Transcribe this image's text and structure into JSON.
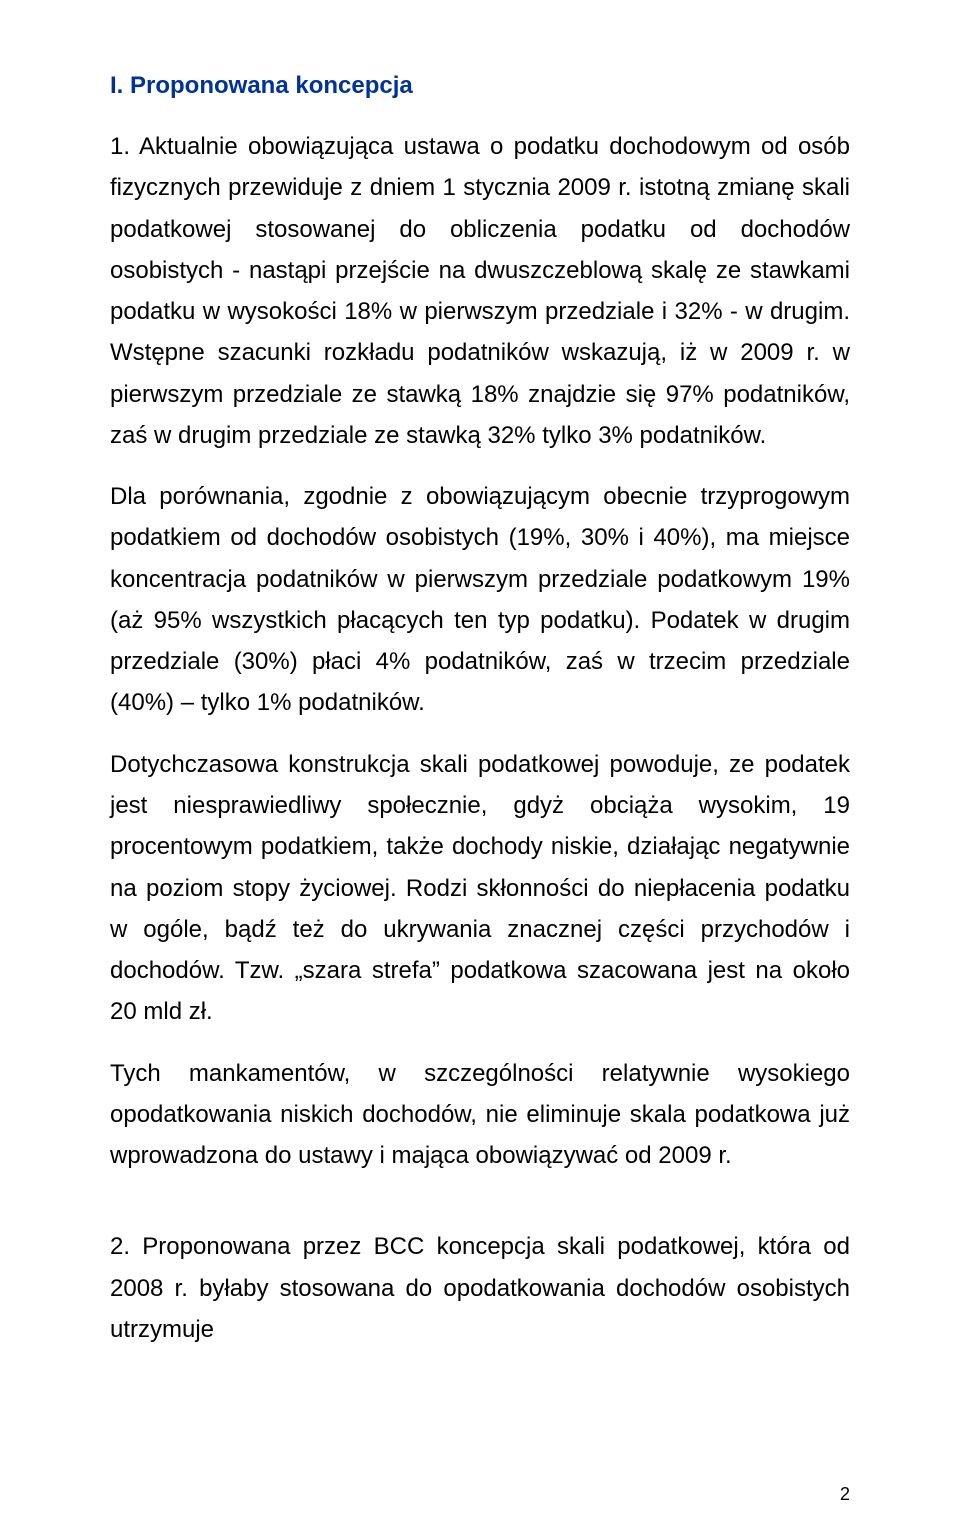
{
  "heading": "I.  Proponowana koncepcja",
  "p1": "1. Aktualnie obowiązująca ustawa o podatku dochodowym od osób fizycznych przewiduje z dniem 1 stycznia 2009 r. istotną zmianę skali podatkowej stosowanej do obliczenia podatku od dochodów osobistych - nastąpi przejście na dwuszczeblową skalę ze stawkami podatku w wysokości 18% w pierwszym przedziale i 32% - w drugim. Wstępne szacunki rozkładu podatników wskazują, iż w 2009 r. w pierwszym przedziale ze stawką 18% znajdzie się 97% podatników, zaś w drugim przedziale ze stawką 32% tylko 3% podatników.",
  "p2": "Dla porównania, zgodnie z obowiązującym obecnie trzyprogowym podatkiem od dochodów osobistych (19%, 30% i 40%), ma miejsce koncentracja podatników w pierwszym przedziale podatkowym 19% (aż 95% wszystkich płacących ten typ podatku). Podatek w drugim przedziale (30%) płaci 4% podatników, zaś w trzecim przedziale (40%) – tylko 1% podatników.",
  "p3": "Dotychczasowa konstrukcja skali podatkowej powoduje, ze podatek jest niesprawiedliwy społecznie, gdyż obciąża wysokim, 19 procentowym podatkiem, także dochody niskie, działając negatywnie na poziom stopy życiowej. Rodzi skłonności do niepłacenia podatku w ogóle, bądź też do ukrywania znacznej części przychodów i dochodów. Tzw. „szara strefa” podatkowa szacowana jest na około 20 mld zł.",
  "p4": "Tych mankamentów, w szczególności relatywnie wysokiego opodatkowania niskich dochodów, nie eliminuje skala podatkowa już wprowadzona do ustawy i mająca obowiązywać od 2009 r.",
  "p5": "2. Proponowana przez BCC koncepcja skali podatkowej, która od 2008 r. byłaby stosowana do opodatkowania dochodów osobistych utrzymuje",
  "pageNumber": "2"
}
